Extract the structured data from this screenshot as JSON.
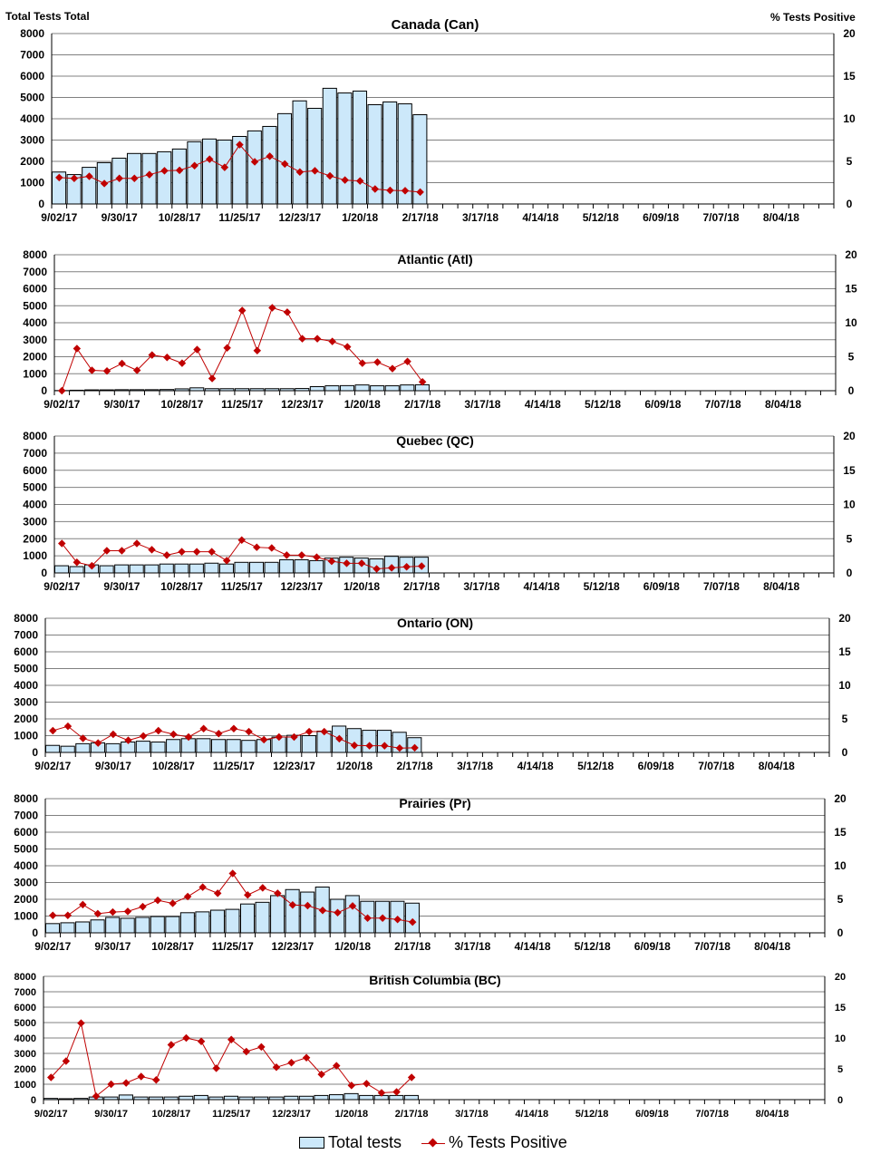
{
  "header": {
    "left_axis_title": "Total Tests Total",
    "right_axis_title": "% Tests Positive"
  },
  "legend": {
    "bar_label": "Total tests",
    "line_label": "% Tests Positive"
  },
  "colors": {
    "bar_fill": "#cce8fa",
    "bar_stroke": "#000000",
    "line": "#c00000",
    "grid": "#808080"
  },
  "chart_data": [
    {
      "type": "bar+line",
      "title": "Canada (Can)",
      "ylim": [
        0,
        8000
      ],
      "y2lim": [
        0,
        20
      ],
      "yticks": [
        "0",
        "1000",
        "2000",
        "3000",
        "4000",
        "5000",
        "6000",
        "7000",
        "8000"
      ],
      "y2ticks": [
        "0",
        "5",
        "10",
        "15",
        "20"
      ],
      "n_weeks": 52,
      "xtick_labels": [
        "9/02/17",
        "9/30/17",
        "10/28/17",
        "11/25/17",
        "12/23/17",
        "1/20/18",
        "2/17/18",
        "3/17/18",
        "4/14/18",
        "5/12/18",
        "6/09/18",
        "7/07/18",
        "8/04/18"
      ],
      "series": [
        {
          "name": "Total tests",
          "axis": "left",
          "values": [
            1500,
            1380,
            1720,
            1940,
            2150,
            2370,
            2370,
            2450,
            2580,
            2920,
            3050,
            3000,
            3170,
            3430,
            3640,
            4240,
            4840,
            4490,
            5430,
            5210,
            5300,
            4660,
            4790,
            4700,
            4190
          ]
        },
        {
          "name": "% Tests Positive",
          "axis": "right",
          "values": [
            3.1,
            3.0,
            3.25,
            2.4,
            3.0,
            3.0,
            3.45,
            3.9,
            3.95,
            4.5,
            5.25,
            4.3,
            6.95,
            4.95,
            5.6,
            4.7,
            3.75,
            3.9,
            3.3,
            2.8,
            2.7,
            1.75,
            1.6,
            1.55,
            1.4
          ]
        }
      ]
    },
    {
      "type": "bar+line",
      "title": "Atlantic (Atl)",
      "ylim": [
        0,
        8000
      ],
      "y2lim": [
        0,
        20
      ],
      "yticks": [
        "0",
        "1000",
        "2000",
        "3000",
        "4000",
        "5000",
        "6000",
        "7000",
        "8000"
      ],
      "y2ticks": [
        "0",
        "5",
        "10",
        "15",
        "20"
      ],
      "n_weeks": 52,
      "xtick_labels": [
        "9/02/17",
        "9/30/17",
        "10/28/17",
        "11/25/17",
        "12/23/17",
        "1/20/18",
        "2/17/18",
        "3/17/18",
        "4/14/18",
        "5/12/18",
        "6/09/18",
        "7/07/18",
        "8/04/18"
      ],
      "series": [
        {
          "name": "Total tests",
          "axis": "left",
          "values": [
            10,
            30,
            50,
            50,
            60,
            60,
            60,
            70,
            110,
            170,
            120,
            120,
            120,
            120,
            120,
            120,
            130,
            240,
            290,
            300,
            340,
            290,
            290,
            340,
            350
          ]
        },
        {
          "name": "% Tests Positive",
          "axis": "right",
          "values": [
            0,
            6.2,
            3.0,
            2.9,
            4.0,
            3.0,
            5.25,
            4.9,
            4.05,
            6.05,
            1.8,
            6.3,
            11.8,
            5.9,
            12.2,
            11.55,
            7.65,
            7.65,
            7.25,
            6.45,
            4.05,
            4.2,
            3.25,
            4.3,
            1.3
          ]
        }
      ]
    },
    {
      "type": "bar+line",
      "title": "Quebec (QC)",
      "ylim": [
        0,
        8000
      ],
      "y2lim": [
        0,
        20
      ],
      "yticks": [
        "0",
        "1000",
        "2000",
        "3000",
        "4000",
        "5000",
        "6000",
        "7000",
        "8000"
      ],
      "y2ticks": [
        "0",
        "5",
        "10",
        "15",
        "20"
      ],
      "n_weeks": 52,
      "xtick_labels": [
        "9/02/17",
        "9/30/17",
        "10/28/17",
        "11/25/17",
        "12/23/17",
        "1/20/18",
        "2/17/18",
        "3/17/18",
        "4/14/18",
        "5/12/18",
        "6/09/18",
        "7/07/18",
        "8/04/18"
      ],
      "series": [
        {
          "name": "Total tests",
          "axis": "left",
          "values": [
            420,
            370,
            470,
            420,
            470,
            470,
            470,
            520,
            520,
            520,
            570,
            520,
            620,
            620,
            620,
            770,
            770,
            720,
            870,
            920,
            870,
            820,
            970,
            920,
            920
          ]
        },
        {
          "name": "% Tests Positive",
          "axis": "right",
          "values": [
            4.3,
            1.55,
            1.05,
            3.25,
            3.25,
            4.3,
            3.4,
            2.6,
            3.1,
            3.1,
            3.1,
            1.8,
            4.8,
            3.75,
            3.65,
            2.6,
            2.6,
            2.3,
            1.7,
            1.4,
            1.4,
            0.6,
            0.75,
            0.9,
            1.0
          ]
        }
      ]
    },
    {
      "type": "bar+line",
      "title": "Ontario (ON)",
      "ylim": [
        0,
        8000
      ],
      "y2lim": [
        0,
        20
      ],
      "yticks": [
        "0",
        "1000",
        "2000",
        "3000",
        "4000",
        "5000",
        "6000",
        "7000",
        "8000"
      ],
      "y2ticks": [
        "0",
        "5",
        "10",
        "15",
        "20"
      ],
      "n_weeks": 52,
      "xtick_labels": [
        "9/02/17",
        "9/30/17",
        "10/28/17",
        "11/25/17",
        "12/23/17",
        "1/20/18",
        "2/17/18",
        "3/17/18",
        "4/14/18",
        "5/12/18",
        "6/09/18",
        "7/07/18",
        "8/04/18"
      ],
      "series": [
        {
          "name": "Total tests",
          "axis": "left",
          "values": [
            420,
            370,
            520,
            570,
            520,
            620,
            670,
            620,
            770,
            820,
            820,
            770,
            770,
            720,
            770,
            920,
            1020,
            1000,
            1270,
            1570,
            1420,
            1320,
            1320,
            1200,
            880
          ]
        },
        {
          "name": "% Tests Positive",
          "axis": "right",
          "values": [
            3.25,
            3.9,
            2.1,
            1.4,
            2.7,
            1.8,
            2.45,
            3.25,
            2.7,
            2.3,
            3.55,
            2.8,
            3.55,
            3.1,
            1.9,
            2.3,
            2.3,
            3.1,
            3.1,
            2.05,
            1.05,
            1.0,
            1.0,
            0.65,
            0.7
          ]
        }
      ]
    },
    {
      "type": "bar+line",
      "title": "Prairies (Pr)",
      "ylim": [
        0,
        8000
      ],
      "y2lim": [
        0,
        20
      ],
      "yticks": [
        "0",
        "1000",
        "2000",
        "3000",
        "4000",
        "5000",
        "6000",
        "7000",
        "8000"
      ],
      "y2ticks": [
        "0",
        "5",
        "10",
        "15",
        "20"
      ],
      "n_weeks": 52,
      "xtick_labels": [
        "9/02/17",
        "9/30/17",
        "10/28/17",
        "11/25/17",
        "12/23/17",
        "1/20/18",
        "2/17/18",
        "3/17/18",
        "4/14/18",
        "5/12/18",
        "6/09/18",
        "7/07/18",
        "8/04/18"
      ],
      "series": [
        {
          "name": "Total tests",
          "axis": "left",
          "values": [
            550,
            600,
            650,
            770,
            920,
            870,
            920,
            970,
            970,
            1200,
            1250,
            1350,
            1400,
            1720,
            1820,
            2220,
            2580,
            2430,
            2730,
            2000,
            2220,
            1880,
            1880,
            1880,
            1770
          ]
        },
        {
          "name": "% Tests Positive",
          "axis": "right",
          "values": [
            2.6,
            2.6,
            4.2,
            2.85,
            3.1,
            3.2,
            3.9,
            4.85,
            4.4,
            5.4,
            6.8,
            5.9,
            8.85,
            5.65,
            6.7,
            5.9,
            4.15,
            4.05,
            3.35,
            3.0,
            4.0,
            2.2,
            2.2,
            2.0,
            1.6
          ]
        }
      ]
    },
    {
      "type": "bar+line",
      "title": "British Columbia (BC)",
      "ylim": [
        0,
        8000
      ],
      "y2lim": [
        0,
        20
      ],
      "yticks": [
        "0",
        "1000",
        "2000",
        "3000",
        "4000",
        "5000",
        "6000",
        "7000",
        "8000"
      ],
      "y2ticks": [
        "0",
        "5",
        "10",
        "15",
        "20"
      ],
      "n_weeks": 52,
      "xtick_labels": [
        "9/02/17",
        "9/30/17",
        "10/28/17",
        "11/25/17",
        "12/23/17",
        "1/20/18",
        "2/17/18",
        "3/17/18",
        "4/14/18",
        "5/12/18",
        "6/09/18",
        "7/07/18",
        "8/04/18"
      ],
      "series": [
        {
          "name": "Total tests",
          "axis": "left",
          "values": [
            80,
            60,
            80,
            170,
            170,
            300,
            170,
            170,
            170,
            220,
            270,
            170,
            220,
            170,
            170,
            170,
            220,
            220,
            270,
            320,
            390,
            270,
            270,
            270,
            270
          ]
        },
        {
          "name": "% Tests Positive",
          "axis": "right",
          "values": [
            3.6,
            6.25,
            12.4,
            0.55,
            2.5,
            2.7,
            3.75,
            3.2,
            8.9,
            10.0,
            9.45,
            5.1,
            9.75,
            7.8,
            8.55,
            5.25,
            6.0,
            6.8,
            4.1,
            5.5,
            2.3,
            2.6,
            1.1,
            1.25,
            3.6
          ]
        }
      ]
    }
  ]
}
